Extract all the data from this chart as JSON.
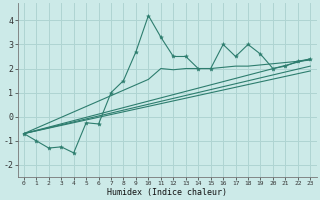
{
  "xlabel": "Humidex (Indice chaleur)",
  "background_color": "#cceae8",
  "grid_color": "#afd4d2",
  "line_color": "#2d7d6e",
  "xlim": [
    -0.5,
    23.5
  ],
  "ylim": [
    -2.5,
    4.7
  ],
  "xticks": [
    0,
    1,
    2,
    3,
    4,
    5,
    6,
    7,
    8,
    9,
    10,
    11,
    12,
    13,
    14,
    15,
    16,
    17,
    18,
    19,
    20,
    21,
    22,
    23
  ],
  "yticks": [
    -2,
    -1,
    0,
    1,
    2,
    3,
    4
  ],
  "jagged_line": {
    "x": [
      0,
      1,
      2,
      3,
      4,
      5,
      6,
      7,
      8,
      9,
      10,
      11,
      12,
      13,
      14,
      15,
      16,
      17,
      18,
      19,
      20,
      21,
      22,
      23
    ],
    "y": [
      -0.7,
      -1.0,
      -1.3,
      -1.25,
      -1.5,
      -0.25,
      -0.3,
      1.0,
      1.5,
      2.7,
      4.2,
      3.3,
      2.5,
      2.5,
      2.0,
      2.0,
      3.0,
      2.5,
      3.0,
      2.6,
      2.0,
      2.1,
      2.3,
      2.4
    ]
  },
  "linear_lines": [
    {
      "x": [
        0,
        23
      ],
      "y": [
        -0.7,
        2.4
      ]
    },
    {
      "x": [
        0,
        23
      ],
      "y": [
        -0.7,
        2.1
      ]
    },
    {
      "x": [
        0,
        23
      ],
      "y": [
        -0.7,
        1.9
      ]
    },
    {
      "x": [
        0,
        10,
        11,
        12,
        13,
        14,
        15,
        16,
        17,
        18,
        19,
        20,
        21,
        22,
        23
      ],
      "y": [
        -0.7,
        1.55,
        2.0,
        1.95,
        2.0,
        2.0,
        2.0,
        2.05,
        2.1,
        2.1,
        2.15,
        2.2,
        2.25,
        2.3,
        2.35
      ]
    }
  ]
}
